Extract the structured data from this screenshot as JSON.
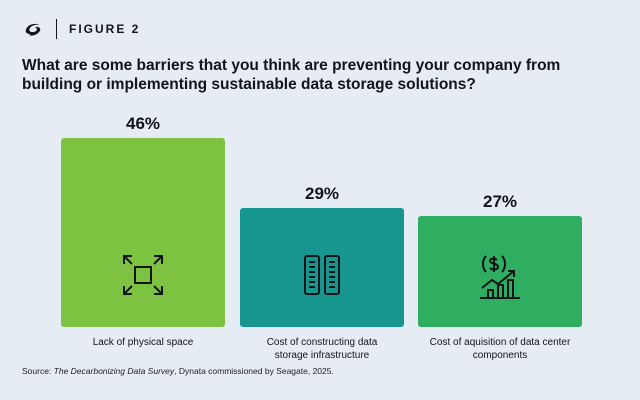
{
  "header": {
    "figure_label": "FIGURE 2",
    "logo_icon": "seagate-logo-icon"
  },
  "question": "What are some barriers that you think are preventing your company from building or implementing sustainable data storage solutions?",
  "chart_data": {
    "type": "bar",
    "categories": [
      "Lack of physical space",
      "Cost of constructing data storage infrastructure",
      "Cost of aquisition of data center components"
    ],
    "values": [
      46,
      29,
      27
    ],
    "value_labels": [
      "46%",
      "29%",
      "27%"
    ],
    "colors": [
      "#7ec242",
      "#16968e",
      "#2fae62"
    ],
    "icons": [
      "expand-frame-icon",
      "server-racks-icon",
      "dollar-growth-chart-icon"
    ],
    "ylim": [
      0,
      46
    ]
  },
  "source": {
    "prefix": "Source: ",
    "title": "The Decarbonizing Data Survey",
    "suffix": ", Dynata commissioned by Seagate, 2025."
  }
}
